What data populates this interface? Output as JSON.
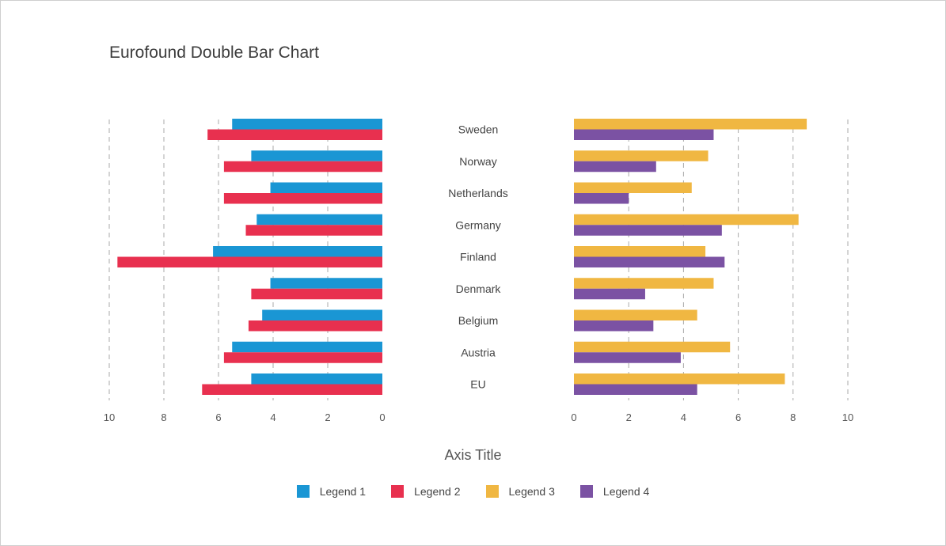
{
  "chart_data": {
    "type": "bar",
    "title": "Eurofound Double Bar Chart",
    "xlabel": "Axis Title",
    "ylabel": "",
    "orientation": "horizontal",
    "categories": [
      "Sweden",
      "Norway",
      "Netherlands",
      "Germany",
      "Finland",
      "Denmark",
      "Belgium",
      "Austria",
      "EU"
    ],
    "left_panel": {
      "xlim": [
        0,
        10
      ],
      "direction": "reversed",
      "ticks": [
        "10",
        "8",
        "6",
        "4",
        "2",
        "0"
      ],
      "series": [
        {
          "name": "Legend 1",
          "color": "#1a96d4",
          "values": [
            5.5,
            4.8,
            4.1,
            4.6,
            6.2,
            4.1,
            4.4,
            5.5,
            4.8
          ]
        },
        {
          "name": "Legend 2",
          "color": "#e8304f",
          "values": [
            6.4,
            5.8,
            5.8,
            5.0,
            9.7,
            4.8,
            4.9,
            5.8,
            6.6
          ]
        }
      ]
    },
    "right_panel": {
      "xlim": [
        0,
        10
      ],
      "direction": "normal",
      "ticks": [
        "0",
        "2",
        "4",
        "6",
        "8",
        "10"
      ],
      "series": [
        {
          "name": "Legend 3",
          "color": "#f0b742",
          "values": [
            8.5,
            4.9,
            4.3,
            8.2,
            4.8,
            5.1,
            4.5,
            5.7,
            7.7
          ]
        },
        {
          "name": "Legend 4",
          "color": "#7b52a3",
          "values": [
            5.1,
            3.0,
            2.0,
            5.4,
            5.5,
            2.6,
            2.9,
            3.9,
            4.5
          ]
        }
      ]
    },
    "grid": true,
    "legend_position": "bottom"
  }
}
